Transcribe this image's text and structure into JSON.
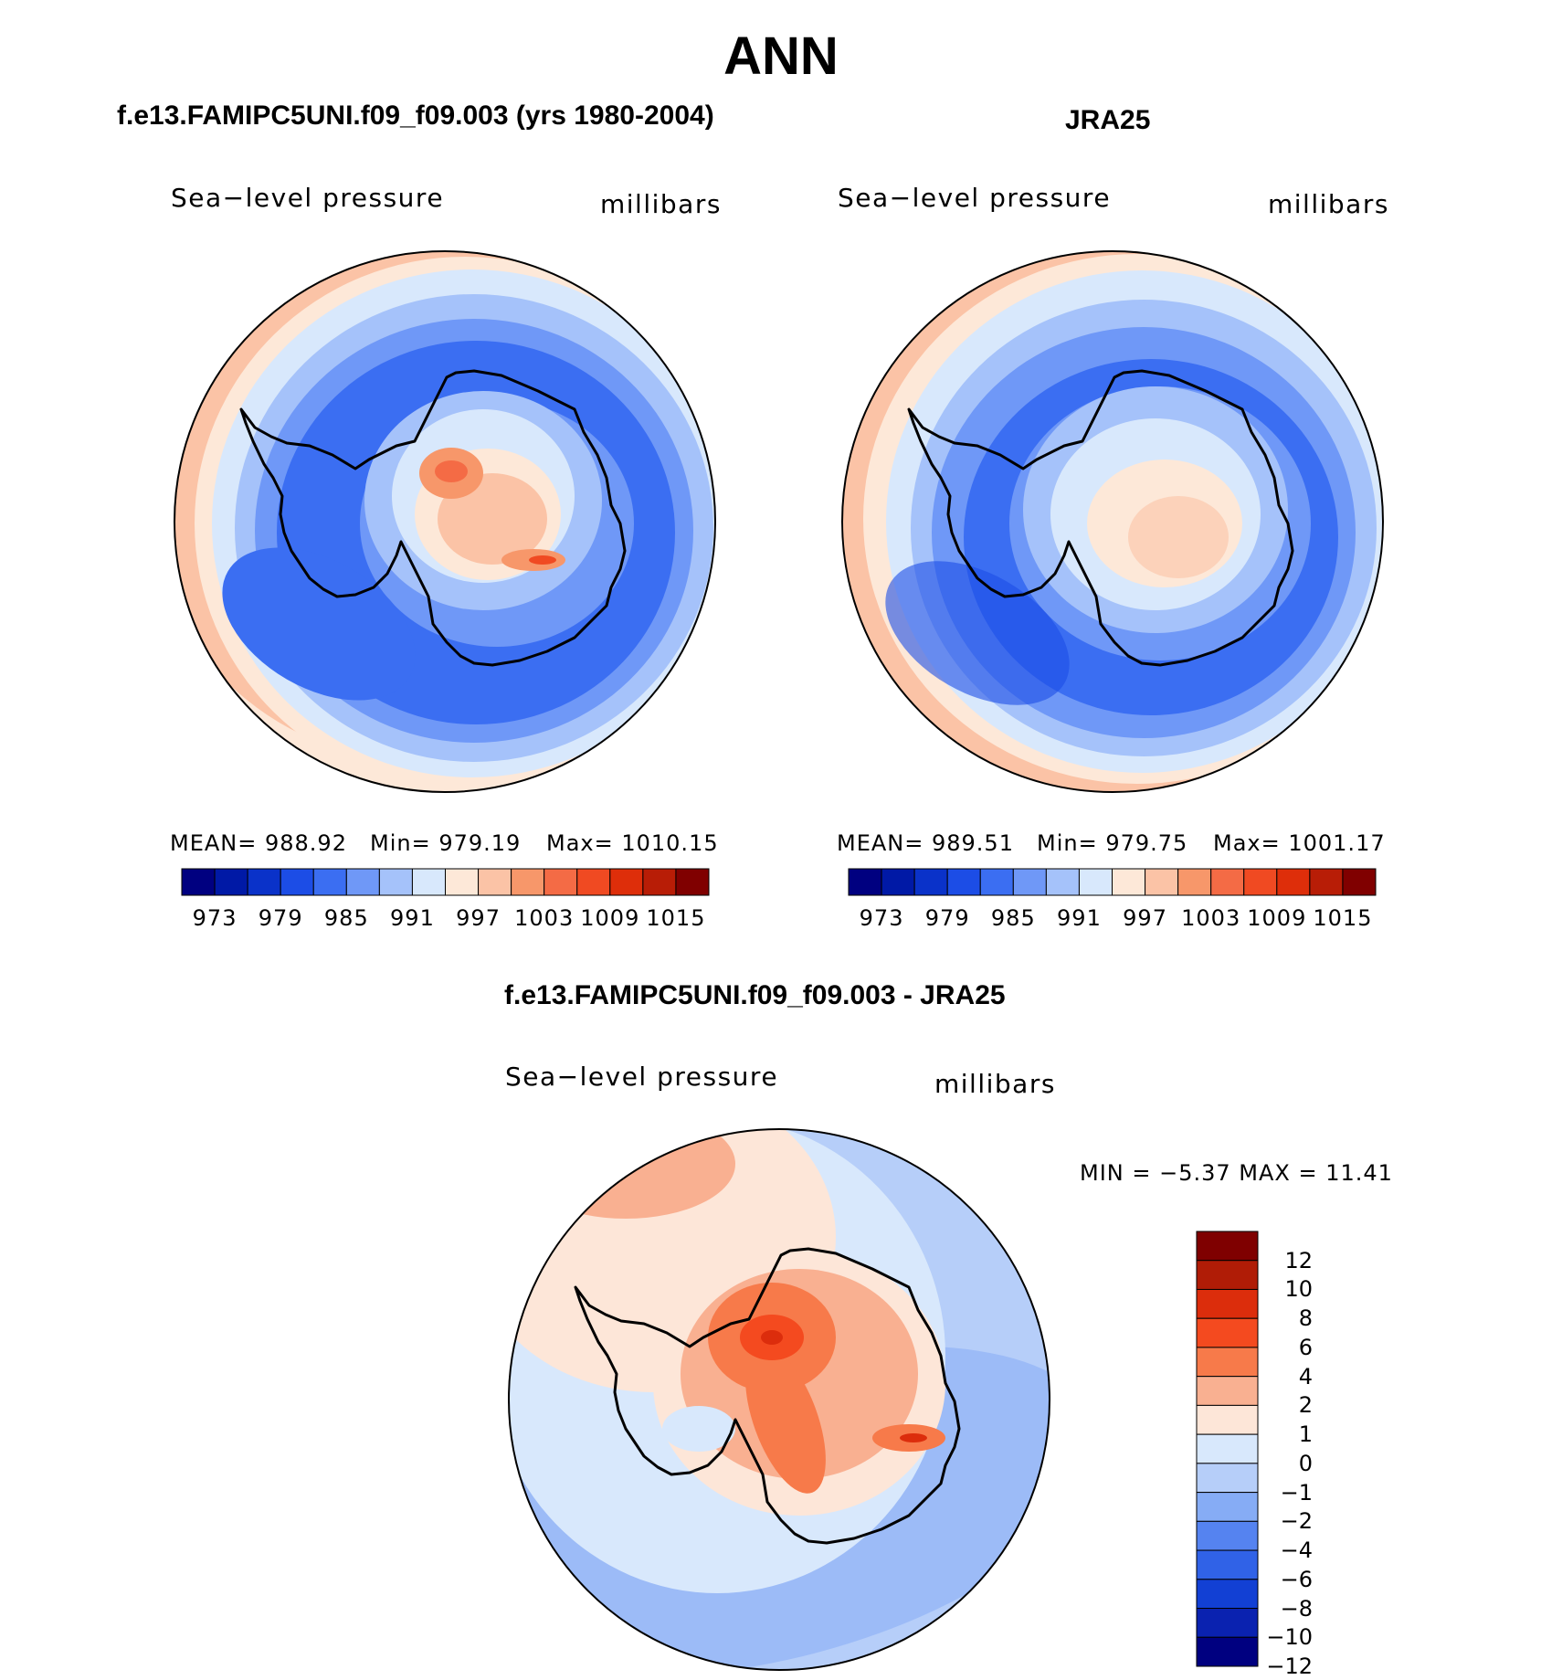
{
  "title": "ANN",
  "panels": {
    "model": {
      "title": "f.e13.FAMIPC5UNI.f09_f09.003 (yrs 1980-2004)",
      "variable": "Sea−level pressure",
      "units": "millibars",
      "stats": {
        "mean": "MEAN=  988.92",
        "min": "Min=  979.19",
        "max": "Max=  1010.15"
      }
    },
    "obs": {
      "title": "JRA25",
      "variable": "Sea−level pressure",
      "units": "millibars",
      "stats": {
        "mean": "MEAN=  989.51",
        "min": "Min=  979.75",
        "max": "Max=  1001.17"
      }
    },
    "diff": {
      "title": "f.e13.FAMIPC5UNI.f09_f09.003 - JRA25",
      "variable": "Sea−level pressure",
      "units": "millibars",
      "stats": {
        "minmax": "MIN =    −5.37  MAX =    11.41"
      }
    }
  },
  "colorbar_abs": {
    "colors": [
      "#000080",
      "#0019a6",
      "#0a32c9",
      "#1c4de6",
      "#3b6ef2",
      "#6f98f7",
      "#a5c2fa",
      "#d8e8fc",
      "#fde8d8",
      "#fbc3a6",
      "#f7976a",
      "#f46b45",
      "#f04a22",
      "#de2e0a",
      "#b81d06",
      "#800000"
    ],
    "labels": [
      "973",
      "979",
      "985",
      "991",
      "997",
      "1003",
      "1009",
      "1015"
    ]
  },
  "colorbar_diff": {
    "colors": [
      "#7f0000",
      "#b01c06",
      "#dc2d0c",
      "#f44a1f",
      "#f77a4a",
      "#f9b091",
      "#fde6d8",
      "#d8e8fc",
      "#b6cef9",
      "#86acf5",
      "#5583f0",
      "#3062e7",
      "#1240d4",
      "#0a22b0",
      "#000080"
    ],
    "labels": [
      "12",
      "10",
      "8",
      "6",
      "4",
      "2",
      "1",
      "0",
      "−1",
      "−2",
      "−4",
      "−6",
      "−8",
      "−10",
      "−12"
    ]
  }
}
